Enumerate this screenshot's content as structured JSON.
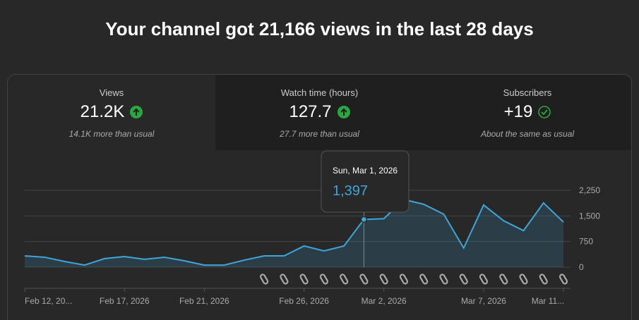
{
  "header": {
    "title": "Your channel got 21,166 views in the last 28 days"
  },
  "cards": [
    {
      "label": "Views",
      "value": "21.2K",
      "note": "14.1K more than usual"
    },
    {
      "label": "Watch time (hours)",
      "value": "127.7",
      "note": "27.7 more than usual"
    },
    {
      "label": "Subscribers",
      "value": "+19",
      "note": "About the same as usual"
    }
  ],
  "chart_data": {
    "type": "area",
    "categories": [
      "Feb 12, 20...",
      null,
      null,
      null,
      null,
      "Feb 17, 2026",
      null,
      null,
      null,
      "Feb 21, 2026",
      null,
      null,
      null,
      null,
      "Feb 26, 2026",
      null,
      null,
      null,
      "Mar 2, 2026",
      null,
      null,
      null,
      null,
      "Mar 7, 2026",
      null,
      null,
      null,
      "Mar 11..."
    ],
    "series": [
      {
        "name": "Views",
        "color": "#3ea6d9",
        "values": [
          330,
          290,
          165,
          60,
          250,
          310,
          230,
          290,
          185,
          60,
          60,
          205,
          330,
          330,
          620,
          475,
          620,
          1397,
          1420,
          1980,
          1840,
          1550,
          560,
          1820,
          1360,
          1070,
          1880,
          1320
        ]
      }
    ],
    "ylim": [
      0,
      2250
    ],
    "yticks": [
      0,
      750,
      {
        "value": 1500,
        "label": "1,500"
      },
      {
        "value": 2250,
        "label": "2,250"
      }
    ],
    "grid": true,
    "tooltip": {
      "index": 17,
      "title": "Sun, Mar 1, 2026",
      "value_label": "1,397"
    }
  }
}
